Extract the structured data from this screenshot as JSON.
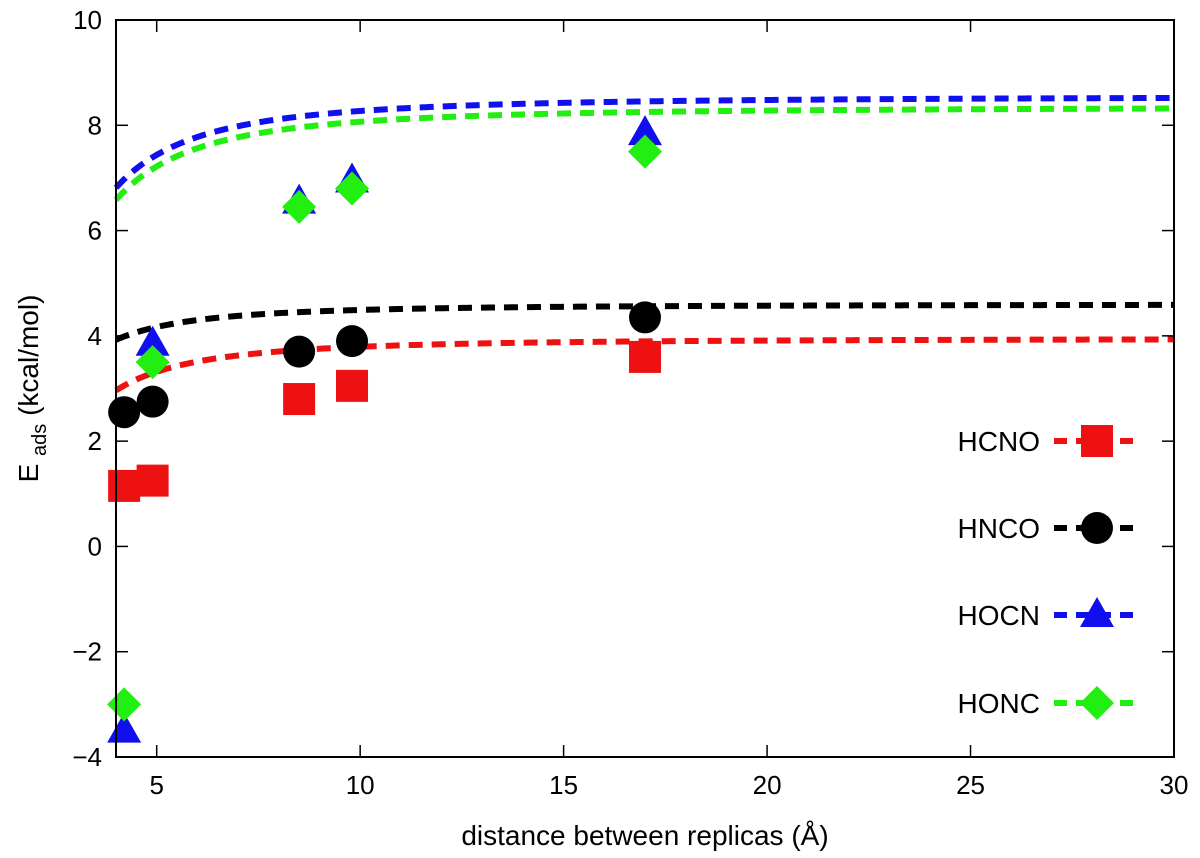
{
  "chart_data": {
    "type": "scatter",
    "xlabel": "distance between replicas (Å)",
    "ylabel_main": "E",
    "ylabel_sub": "ads",
    "ylabel_rest": " (kcal/mol)",
    "xlim": [
      4,
      30
    ],
    "ylim": [
      -4,
      10
    ],
    "xticks": [
      5,
      10,
      15,
      20,
      25,
      30
    ],
    "yticks": [
      -4,
      -2,
      0,
      2,
      4,
      6,
      8,
      10
    ],
    "grid": false,
    "legend_position": "right-center",
    "series": [
      {
        "name": "HCNO",
        "color": "#ee1111",
        "marker": "square",
        "points": [
          [
            4.2,
            1.15
          ],
          [
            4.9,
            1.25
          ],
          [
            8.5,
            2.8
          ],
          [
            9.8,
            3.05
          ],
          [
            17.0,
            3.6
          ]
        ],
        "fit": {
          "a": 3.95,
          "b": 15.8
        }
      },
      {
        "name": "HNCO",
        "color": "#000000",
        "marker": "circle",
        "points": [
          [
            4.2,
            2.55
          ],
          [
            4.9,
            2.75
          ],
          [
            8.5,
            3.7
          ],
          [
            9.8,
            3.9
          ],
          [
            17.0,
            4.35
          ]
        ],
        "fit": {
          "a": 4.6,
          "b": 10.8
        }
      },
      {
        "name": "HOCN",
        "color": "#1010ee",
        "marker": "triangle",
        "points": [
          [
            4.2,
            -3.5
          ],
          [
            4.9,
            3.85
          ],
          [
            8.5,
            6.55
          ],
          [
            9.8,
            6.95
          ],
          [
            17.0,
            7.85
          ]
        ],
        "fit": {
          "a": 8.55,
          "b": 27.8
        }
      },
      {
        "name": "HONC",
        "color": "#22ee11",
        "marker": "diamond",
        "points": [
          [
            4.2,
            -3.0
          ],
          [
            4.9,
            3.5
          ],
          [
            8.5,
            6.45
          ],
          [
            9.8,
            6.8
          ],
          [
            17.0,
            7.5
          ]
        ],
        "fit": {
          "a": 8.35,
          "b": 28.3
        }
      }
    ]
  }
}
